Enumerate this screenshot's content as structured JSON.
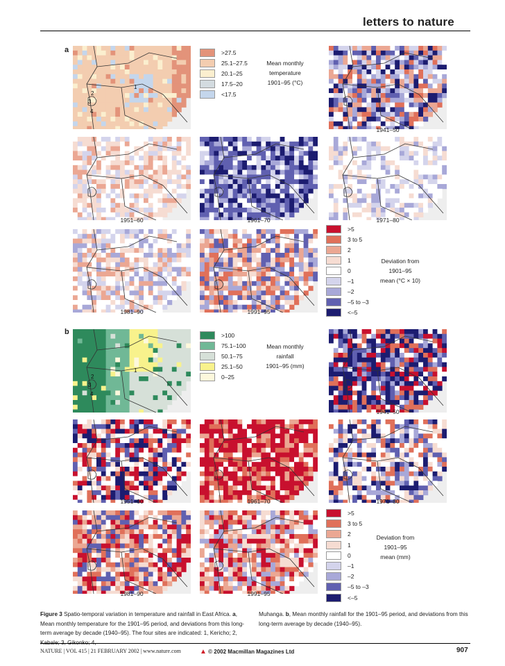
{
  "header": {
    "title": "letters to nature"
  },
  "panels": {
    "a": "a",
    "b": "b"
  },
  "temp_maps": [
    {
      "cap": "",
      "cols": [
        "#f2d7c4",
        "#f0d0b8",
        "#e8e4e8",
        "#f4dcc8"
      ],
      "kind": "t0"
    },
    {
      "cap": "1941–50",
      "cols": [
        "#8c8cc8",
        "#a8a8d8",
        "#d0d0e8",
        "#e4a890"
      ],
      "kind": "t1"
    },
    {
      "cap": "1951–60",
      "cols": [
        "#f3ddd6",
        "#e8b8a8",
        "#f6ece8",
        "#e8c4b4"
      ],
      "kind": "t2"
    },
    {
      "cap": "1961–70",
      "cols": [
        "#6464b4",
        "#8484c4",
        "#b0b0d8",
        "#5858a8"
      ],
      "kind": "t3"
    },
    {
      "cap": "1971–80",
      "cols": [
        "#d8d8ec",
        "#f4f4f8",
        "#c8c8e4",
        "#e0b0a0"
      ],
      "kind": "t4"
    },
    {
      "cap": "1981–90",
      "cols": [
        "#f4f0f0",
        "#e8a890",
        "#dcdcf0",
        "#eec8bc"
      ],
      "kind": "t5"
    },
    {
      "cap": "1991–95",
      "cols": [
        "#e8a890",
        "#f0c8b8",
        "#9090c8",
        "#e89078"
      ],
      "kind": "t6"
    }
  ],
  "rain_maps": [
    {
      "cap": "",
      "kind": "r0"
    },
    {
      "cap": "1941–50",
      "kind": "r1"
    },
    {
      "cap": "1951–60",
      "kind": "r2"
    },
    {
      "cap": "1961–70",
      "kind": "r3"
    },
    {
      "cap": "1971–80",
      "kind": "r4"
    },
    {
      "cap": "1981–90",
      "kind": "r5"
    },
    {
      "cap": "1991–95",
      "kind": "r6"
    }
  ],
  "sites": [
    "1",
    "2",
    "3",
    "4"
  ],
  "legend_temp_mean": {
    "title": [
      "Mean monthly",
      "temperature",
      "1901–95 (°C)"
    ],
    "items": [
      {
        "label": ">27.5",
        "color": "#e3937a"
      },
      {
        "label": "25.1–27.5",
        "color": "#f3cdb0"
      },
      {
        "label": "20.1–25",
        "color": "#fbefcf"
      },
      {
        "label": "17.5–20",
        "color": "#d3dbe0"
      },
      {
        "label": "<17.5",
        "color": "#c4d6ec"
      }
    ]
  },
  "legend_temp_dev": {
    "title": [
      "Deviation from",
      "1901–95",
      "mean (°C × 10)"
    ],
    "items": [
      {
        "label": ">5",
        "color": "#c8102e"
      },
      {
        "label": "3 to 5",
        "color": "#e0705a"
      },
      {
        "label": "2",
        "color": "#eba793"
      },
      {
        "label": "1",
        "color": "#f6dcd2"
      },
      {
        "label": "0",
        "color": "#ffffff"
      },
      {
        "label": "–1",
        "color": "#d4d4ec"
      },
      {
        "label": "–2",
        "color": "#a8a8d8"
      },
      {
        "label": "–5 to –3",
        "color": "#6060b0"
      },
      {
        "label": "<–5",
        "color": "#1c1c70"
      }
    ]
  },
  "legend_rain_mean": {
    "title": [
      "Mean monthly",
      "rainfall",
      "1901–95 (mm)"
    ],
    "items": [
      {
        "label": ">100",
        "color": "#2e8a5c"
      },
      {
        "label": "75.1–100",
        "color": "#70b896"
      },
      {
        "label": "50.1–75",
        "color": "#d6e0d8"
      },
      {
        "label": "25.1–50",
        "color": "#f8f28c"
      },
      {
        "label": "0–25",
        "color": "#fdf8dc"
      }
    ]
  },
  "legend_rain_dev": {
    "title": [
      "Deviation from",
      "1901–95",
      "mean (mm)"
    ],
    "items": [
      {
        "label": ">5",
        "color": "#c8102e"
      },
      {
        "label": "3 to 5",
        "color": "#e0705a"
      },
      {
        "label": "2",
        "color": "#eba793"
      },
      {
        "label": "1",
        "color": "#f6dcd2"
      },
      {
        "label": "0",
        "color": "#ffffff"
      },
      {
        "label": "–1",
        "color": "#d4d4ec"
      },
      {
        "label": "–2",
        "color": "#a8a8d8"
      },
      {
        "label": "–5 to –3",
        "color": "#6060b0"
      },
      {
        "label": "<–5",
        "color": "#1c1c70"
      }
    ]
  },
  "caption": {
    "left_bold": "Figure 3",
    "left": " Spatio-temporal variation in temperature and rainfall in East Africa. ",
    "a": "a",
    "left2": ", Mean monthly temperature for the 1901–95 period, and deviations from this long-term average by decade (1940–95). The four sites are indicated: 1, Kericho; 2, Kabale; 3, Gikonko; 4,",
    "right": "Muhanga. ",
    "b": "b",
    "right2": ", Mean monthly rainfall for the 1901–95 period, and deviations from this long-term average by decade (1940–95)."
  },
  "footer": {
    "left": "NATURE | VOL 415 | 21 FEBRUARY 2002 | www.nature.com",
    "center": "© 2002 Macmillan Magazines Ltd",
    "page": "907"
  }
}
